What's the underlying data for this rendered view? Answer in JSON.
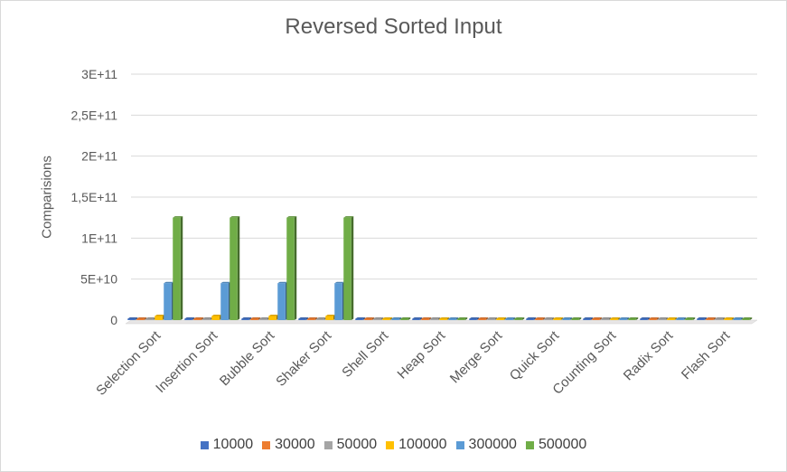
{
  "chart_data": {
    "type": "bar",
    "title": "Reversed Sorted Input",
    "xlabel": "",
    "ylabel": "Comparisions",
    "ylim": [
      0,
      300000000000
    ],
    "yticks": [
      {
        "value": 0,
        "label": "0"
      },
      {
        "value": 50000000000,
        "label": "5E+10"
      },
      {
        "value": 100000000000,
        "label": "1E+11"
      },
      {
        "value": 150000000000,
        "label": "1,5E+11"
      },
      {
        "value": 200000000000,
        "label": "2E+11"
      },
      {
        "value": 250000000000,
        "label": "2,5E+11"
      },
      {
        "value": 300000000000,
        "label": "3E+11"
      }
    ],
    "grid": true,
    "legend_position": "bottom",
    "categories": [
      "Selection Sort",
      "Insertion Sort",
      "Bubble Sort",
      "Shaker Sort",
      "Shell Sort",
      "Heap Sort",
      "Merge Sort",
      "Quick Sort",
      "Counting Sort",
      "Radix Sort",
      "Flash Sort"
    ],
    "series": [
      {
        "name": "10000",
        "color": "#4472C4",
        "values": [
          50000000,
          50000000,
          50000000,
          50000000,
          500000,
          500000,
          250000,
          250000,
          100000,
          150000,
          150000
        ]
      },
      {
        "name": "30000",
        "color": "#ED7D31",
        "values": [
          450000000,
          450000000,
          450000000,
          450000000,
          2000000,
          1500000,
          800000,
          800000,
          300000,
          500000,
          450000
        ]
      },
      {
        "name": "50000",
        "color": "#A5A5A5",
        "values": [
          1250000000,
          1250000000,
          1250000000,
          1250000000,
          3500000,
          2500000,
          1500000,
          1500000,
          500000,
          850000,
          750000
        ]
      },
      {
        "name": "100000",
        "color": "#FFC000",
        "values": [
          5000000000,
          5000000000,
          5000000000,
          5000000000,
          7500000,
          5500000,
          3000000,
          3000000,
          1000000,
          1700000,
          1500000
        ]
      },
      {
        "name": "300000",
        "color": "#5B9BD5",
        "values": [
          45000000000,
          45000000000,
          45000000000,
          45000000000,
          25000000,
          17000000,
          10000000,
          10000000,
          3000000,
          5100000,
          4500000
        ]
      },
      {
        "name": "500000",
        "color": "#70AD47",
        "values": [
          125000000000,
          125000000000,
          125000000000,
          125000000000,
          45000000,
          30000000,
          17000000,
          17000000,
          5000000,
          8500000,
          7500000
        ]
      }
    ]
  }
}
